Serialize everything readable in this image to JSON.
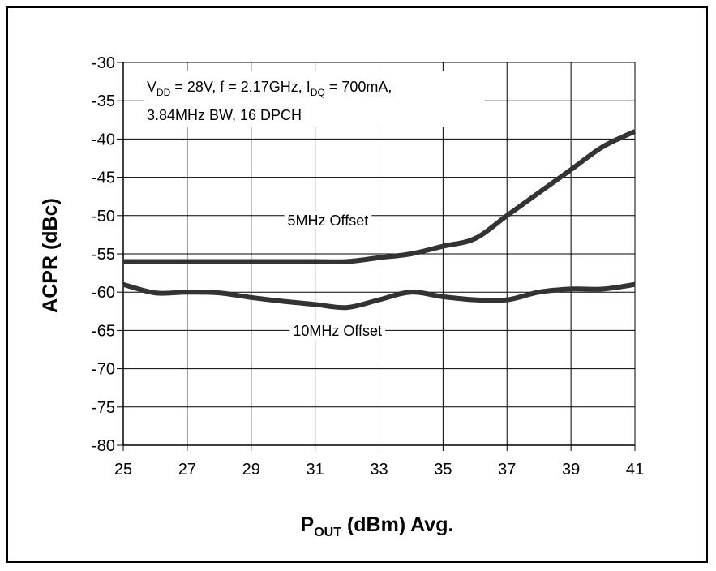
{
  "chart_data": {
    "type": "line",
    "xlabel_main": "P",
    "xlabel_sub": "OUT",
    "xlabel_rest": " (dBm) Avg.",
    "ylabel": "ACPR (dBc)",
    "xlim": [
      25,
      41
    ],
    "ylim": [
      -80,
      -30
    ],
    "xticks": [
      25,
      27,
      29,
      31,
      33,
      35,
      37,
      39,
      41
    ],
    "yticks": [
      -30,
      -35,
      -40,
      -45,
      -50,
      -55,
      -60,
      -65,
      -70,
      -75,
      -80
    ],
    "grid": true,
    "conditions": {
      "line1": {
        "v": "V",
        "v_sub": "DD",
        "mid": " = 28V, f = 2.17GHz, I",
        "i_sub": "DQ",
        "end": " = 700mA,"
      },
      "line2": "3.84MHz BW, 16 DPCH"
    },
    "series": [
      {
        "name": "5MHz Offset",
        "x": [
          25,
          26,
          27,
          28,
          29,
          30,
          31,
          32,
          33,
          34,
          35,
          36,
          37,
          38,
          39,
          40,
          41
        ],
        "y": [
          -56,
          -56,
          -56,
          -56,
          -56,
          -56,
          -56,
          -56,
          -55.5,
          -55,
          -54,
          -53,
          -50,
          -47,
          -44,
          -41,
          -39
        ]
      },
      {
        "name": "10MHz Offset",
        "x": [
          25,
          26,
          27,
          28,
          29,
          30,
          31,
          32,
          33,
          34,
          35,
          36,
          37,
          38,
          39,
          40,
          41
        ],
        "y": [
          -59,
          -60.1,
          -60,
          -60.1,
          -60.7,
          -61.2,
          -61.6,
          -62,
          -61,
          -60,
          -60.6,
          -61,
          -61,
          -60,
          -59.6,
          -59.6,
          -59
        ]
      }
    ]
  }
}
